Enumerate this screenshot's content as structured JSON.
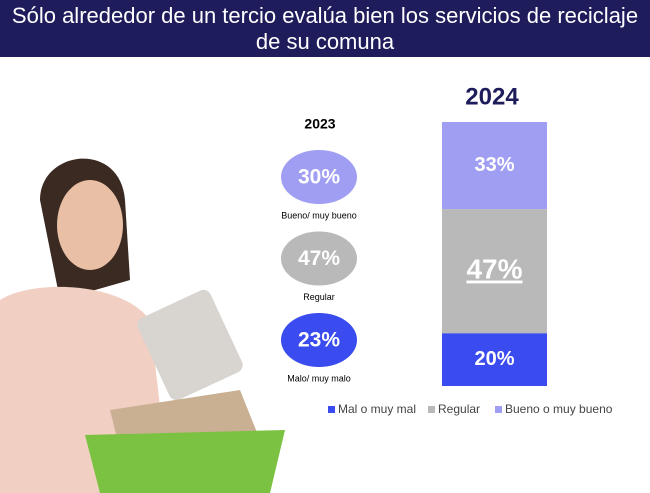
{
  "title": "Sólo alrededor de un tercio evalúa bien los servicios de reciclaje de su comuna",
  "chart_data": [
    {
      "type": "ellipses",
      "title": "2023",
      "categories": [
        "Bueno/ muy bueno",
        "Regular",
        "Malo/ muy malo"
      ],
      "values": [
        30,
        47,
        23
      ],
      "value_labels": [
        "30%",
        "47%",
        "23%"
      ],
      "colors": [
        "#a09ef2",
        "#b9b9b9",
        "#3a4bef"
      ]
    },
    {
      "type": "stacked-bar",
      "title": "2024",
      "ylim": [
        0,
        100
      ],
      "series": [
        {
          "name": "Mal o muy mal",
          "color": "#3a4bef",
          "values": [
            20
          ],
          "value_labels": [
            "20%"
          ]
        },
        {
          "name": "Regular",
          "color": "#b9b9b9",
          "values": [
            47
          ],
          "value_labels": [
            "47%"
          ]
        },
        {
          "name": "Bueno o muy bueno",
          "color": "#a09ef2",
          "values": [
            33
          ],
          "value_labels": [
            "33%"
          ]
        }
      ]
    }
  ]
}
